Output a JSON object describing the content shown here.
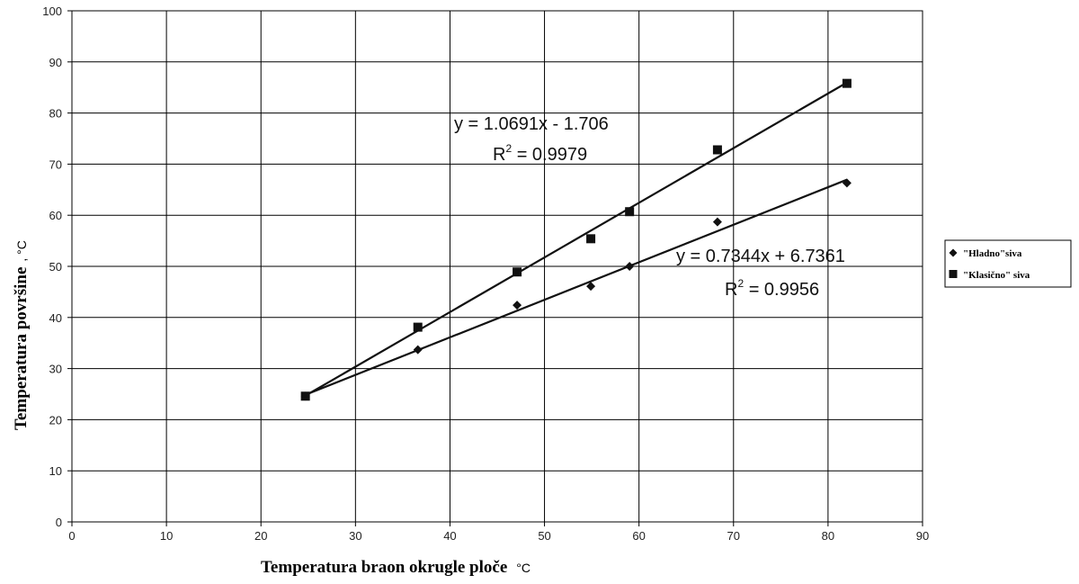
{
  "chart_data": {
    "type": "scatter",
    "xlabel": "Temperatura braon okrugle ploče",
    "xlabel_unit": "°C",
    "ylabel": "Temperatura površine",
    "ylabel_unit": ", °C",
    "xlim": [
      0,
      90
    ],
    "ylim": [
      0,
      100
    ],
    "xticks": [
      0,
      10,
      20,
      30,
      40,
      50,
      60,
      70,
      80,
      90
    ],
    "yticks": [
      0,
      10,
      20,
      30,
      40,
      50,
      60,
      70,
      80,
      90,
      100
    ],
    "grid": true,
    "legend_position": "right",
    "series": [
      {
        "name": "\"Hladno\"siva",
        "marker": "diamond",
        "color": "#111111",
        "x": [
          24.7,
          36.6,
          47.1,
          54.9,
          59.0,
          68.3,
          82.0
        ],
        "y": [
          24.6,
          33.7,
          42.4,
          46.1,
          50.0,
          58.7,
          66.3
        ],
        "trendline": {
          "slope": 0.7344,
          "intercept": 6.7361,
          "r2": 0.9956,
          "equation": "y = 0.7344x + 6.7361",
          "r2_prefix": "R",
          "r2_exp": "2",
          "r2_value": " = 0.9956"
        }
      },
      {
        "name": "\"Klasično\" siva",
        "marker": "square",
        "color": "#111111",
        "x": [
          24.7,
          36.6,
          47.1,
          54.9,
          59.0,
          68.3,
          82.0
        ],
        "y": [
          24.6,
          38.1,
          48.9,
          55.4,
          60.7,
          72.8,
          85.8
        ],
        "trendline": {
          "slope": 1.0691,
          "intercept": -1.706,
          "r2": 0.9979,
          "equation": "y = 1.0691x - 1.706",
          "r2_prefix": "R",
          "r2_exp": "2",
          "r2_value": " = 0.9979"
        }
      }
    ]
  }
}
